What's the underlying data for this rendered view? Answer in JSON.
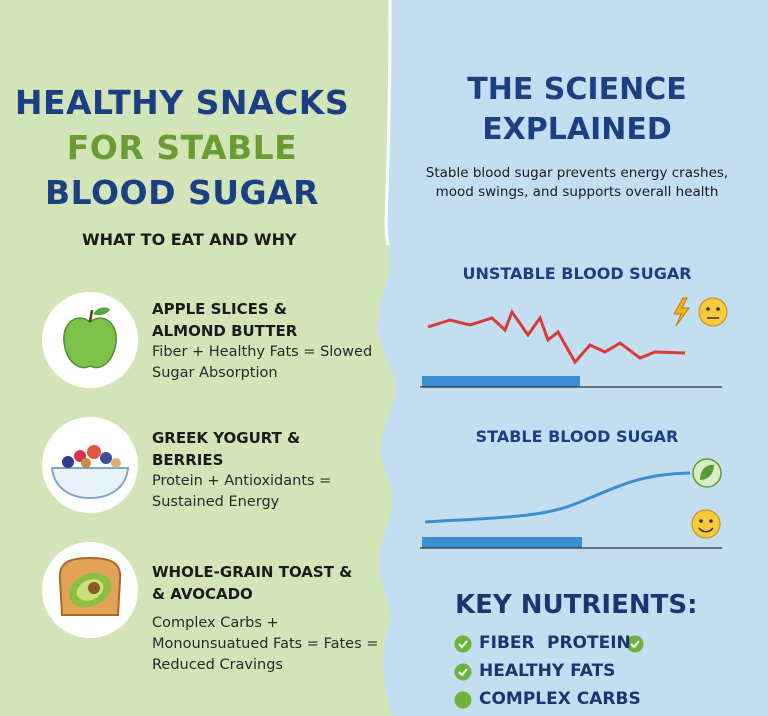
{
  "header": {
    "title_lines": [
      "HEALTHY SNACKS",
      "FOR STABLE",
      "BLOOD SUGAR"
    ],
    "subtitle": "WHAT TO EAT AND WHY"
  },
  "snacks": [
    {
      "name_lines": [
        "APPLE SLICES &",
        "ALMOND BUTTER"
      ],
      "desc_lines": [
        "Fiber + Healthy Fats = Slowed",
        "Sugar Absorption"
      ]
    },
    {
      "name_lines": [
        "GREEK YOGURT &",
        "BERRIES"
      ],
      "desc_lines": [
        "Protein + Antioxidants =",
        "Sustained Energy"
      ]
    },
    {
      "name_lines": [
        "WHOLE-GRAIN TOAST &",
        "& AVOCADO"
      ],
      "desc_lines": [
        "Complex Carbs +",
        "Monounsuatued Fats = Fates =",
        "Reduced Cravings"
      ]
    }
  ],
  "science": {
    "title_lines": [
      "THE SCIENCE",
      "EXPLAINED"
    ],
    "text_lines": [
      "Stable blood sugar prevents energy crashes,",
      "mood swings, and supports overall health"
    ],
    "unstable_title": "UNSTABLE BLOOD SUGAR",
    "stable_title": "STABLE BLOOD SUGAR"
  },
  "nutrients": {
    "title": "KEY NUTRIENTS:",
    "items": [
      "FIBER",
      "PROTEIN",
      "HEALTHY FATS",
      "COMPLEX CARBS"
    ]
  }
}
